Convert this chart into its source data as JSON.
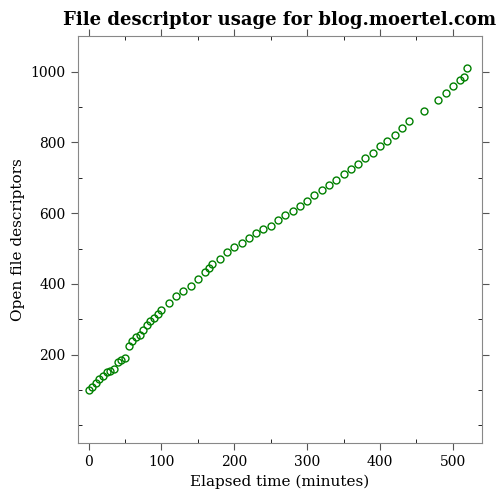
{
  "title": "File descriptor usage for blog.moertel.com",
  "xlabel": "Elapsed time (minutes)",
  "ylabel": "Open file descriptors",
  "x_data": [
    0,
    5,
    10,
    15,
    20,
    25,
    30,
    35,
    40,
    45,
    50,
    55,
    60,
    65,
    70,
    75,
    80,
    85,
    90,
    95,
    100,
    110,
    120,
    130,
    140,
    150,
    160,
    165,
    170,
    180,
    190,
    200,
    210,
    220,
    230,
    240,
    250,
    260,
    270,
    280,
    290,
    300,
    310,
    320,
    330,
    340,
    350,
    360,
    370,
    380,
    390,
    400,
    410,
    420,
    430,
    440,
    460,
    480,
    490,
    500,
    510,
    515,
    520
  ],
  "y_data": [
    100,
    110,
    120,
    130,
    140,
    150,
    155,
    160,
    180,
    185,
    190,
    225,
    240,
    250,
    255,
    270,
    285,
    295,
    305,
    315,
    325,
    345,
    365,
    380,
    395,
    415,
    435,
    445,
    455,
    470,
    490,
    505,
    515,
    530,
    545,
    555,
    565,
    580,
    595,
    605,
    620,
    635,
    650,
    665,
    680,
    695,
    710,
    725,
    740,
    755,
    770,
    790,
    805,
    820,
    840,
    860,
    890,
    920,
    940,
    960,
    975,
    985,
    1010
  ],
  "marker_color": "#008000",
  "marker_facecolor": "none",
  "marker": "o",
  "markersize": 5,
  "markeredgewidth": 1.0,
  "xlim": [
    -15,
    540
  ],
  "ylim": [
    -50,
    1100
  ],
  "xticks": [
    0,
    100,
    200,
    300,
    400,
    500
  ],
  "yticks": [
    200,
    400,
    600,
    800,
    1000
  ],
  "title_fontsize": 13,
  "label_fontsize": 11,
  "tick_fontsize": 10,
  "bg_color": "#ffffff",
  "spine_color": "#888888",
  "figsize": [
    5.0,
    5.0
  ],
  "dpi": 100
}
